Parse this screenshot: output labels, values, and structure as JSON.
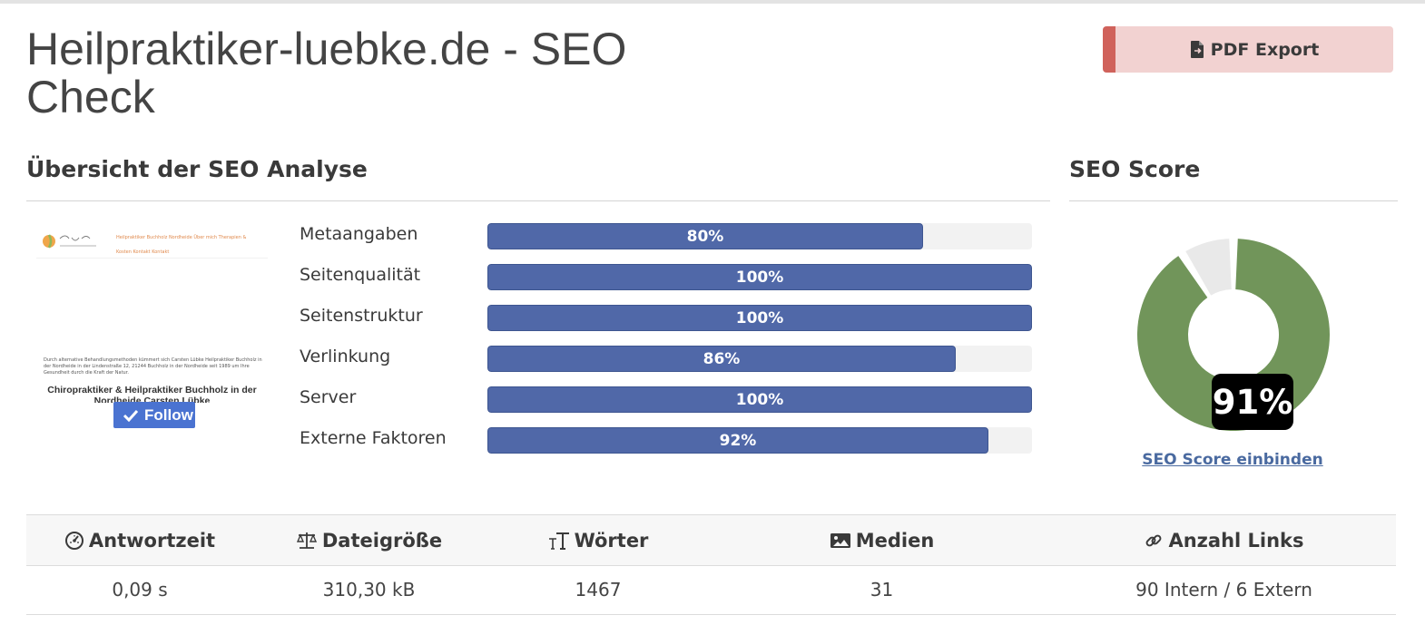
{
  "header": {
    "title": "Heilpraktiker-luebke.de - SEO Check",
    "pdf_export_label": "PDF Export"
  },
  "overview": {
    "title": "Übersicht der SEO Analyse",
    "thumbnail": {
      "logo_text": "Carsten Lübke Heil- & Chiropraktiker",
      "nav_text": "Heilpraktiker Buchholz Nordheide   Über mich   Therapien & Kosten   Kontakt   Kontakt",
      "paragraph_text": "Durch alternative Behandlungsmethoden kümmert sich Carsten Lübke Heilpraktiker Buchholz in der Nordheide in der Lindenstraße 12, 21244 Buchholz in der Nordheide seit 1989 um Ihre Gesundheit durch die Kraft der Natur.",
      "heading_text": "Chiropraktiker & Heilpraktiker Buchholz in der Nordheide Carsten Lübke",
      "follow_label": "Follow"
    },
    "bars": [
      {
        "label": "Metaangaben",
        "value": 80,
        "display": "80%"
      },
      {
        "label": "Seitenqualität",
        "value": 100,
        "display": "100%"
      },
      {
        "label": "Seitenstruktur",
        "value": 100,
        "display": "100%"
      },
      {
        "label": "Verlinkung",
        "value": 86,
        "display": "86%"
      },
      {
        "label": "Server",
        "value": 100,
        "display": "100%"
      },
      {
        "label": "Externe Faktoren",
        "value": 92,
        "display": "92%"
      }
    ]
  },
  "score": {
    "title": "SEO Score",
    "value": 91,
    "display": "91%",
    "embed_link": "SEO Score einbinden",
    "colors": {
      "fill": "#71955a",
      "rest": "#e9e9e9"
    }
  },
  "stats": {
    "columns": [
      {
        "label": "Antwortzeit",
        "icon": "gauge-icon",
        "value": "0,09 s"
      },
      {
        "label": "Dateigröße",
        "icon": "scale-icon",
        "value": "310,30 kB"
      },
      {
        "label": "Wörter",
        "icon": "text-size-icon",
        "value": "1467"
      },
      {
        "label": "Medien",
        "icon": "image-icon",
        "value": "31"
      },
      {
        "label": "Anzahl Links",
        "icon": "link-icon",
        "value": "90 Intern / 6 Extern"
      }
    ]
  },
  "colors": {
    "bar_fill": "#5068a8",
    "pdf_button_bg": "#f2d2d1",
    "pdf_button_accent": "#d0625b",
    "link": "#4a6aa0"
  }
}
